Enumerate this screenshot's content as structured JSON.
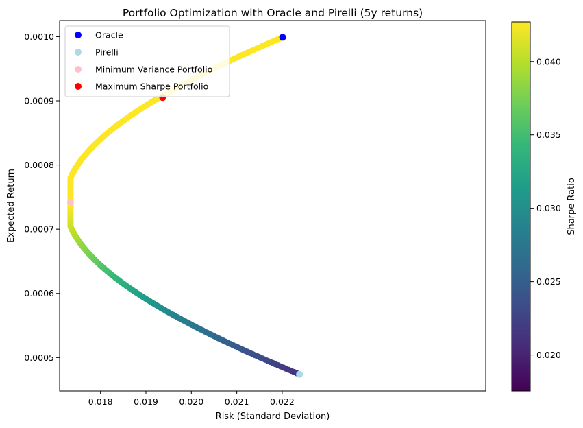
{
  "chart_data": {
    "type": "scatter",
    "title": "Portfolio Optimization with Oracle and Pirelli (5y returns)",
    "xlabel": "Risk (Standard Deviation)",
    "ylabel": "Expected Return",
    "xlim": [
      0.0171,
      0.02648
    ],
    "ylim": [
      0.000448,
      0.001025
    ],
    "x_ticks": [
      0.018,
      0.019,
      0.02,
      0.021,
      0.022
    ],
    "x_tick_labels": [
      "0.018",
      "0.019",
      "0.020",
      "0.021",
      "0.022"
    ],
    "y_ticks": [
      0.0005,
      0.0006,
      0.0007,
      0.0008,
      0.0009,
      0.001
    ],
    "y_tick_labels": [
      "0.0005",
      "0.0006",
      "0.0007",
      "0.0008",
      "0.0009",
      "0.0010"
    ],
    "frontier": {
      "description_points": 300,
      "weight_oracle_range": [
        0,
        1
      ],
      "assets": {
        "oracle": {
          "risk": 0.02201,
          "return": 0.000999
        },
        "pirelli": {
          "risk": 0.02238,
          "return": 0.000474
        }
      },
      "min_variance": {
        "risk": 0.01734,
        "return": 0.000742
      },
      "color_by": "sharpe_ratio"
    },
    "series": [
      {
        "name": "Oracle",
        "color": "#0000ff",
        "x": [
          0.02201
        ],
        "y": [
          0.000999
        ]
      },
      {
        "name": "Pirelli",
        "color": "#add8e6",
        "x": [
          0.02238
        ],
        "y": [
          0.000474
        ]
      },
      {
        "name": "Minimum Variance Portfolio",
        "color": "#ffc0cb",
        "x": [
          0.01734
        ],
        "y": [
          0.000742
        ]
      },
      {
        "name": "Maximum Sharpe Portfolio",
        "color": "#ff0000",
        "x": [
          0.01937
        ],
        "y": [
          0.000905
        ]
      }
    ],
    "colorbar": {
      "label": "Sharpe Ratio",
      "colormap": "viridis",
      "range": [
        0.01755,
        0.0427
      ],
      "ticks": [
        0.02,
        0.025,
        0.03,
        0.035,
        0.04
      ],
      "tick_labels": [
        "0.020",
        "0.025",
        "0.030",
        "0.035",
        "0.040"
      ]
    },
    "legend_placement": "top-left",
    "grid": false
  }
}
